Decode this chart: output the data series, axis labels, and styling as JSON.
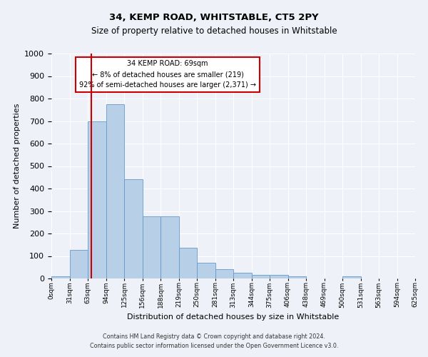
{
  "title": "34, KEMP ROAD, WHITSTABLE, CT5 2PY",
  "subtitle": "Size of property relative to detached houses in Whitstable",
  "xlabel": "Distribution of detached houses by size in Whitstable",
  "ylabel": "Number of detached properties",
  "footer_line1": "Contains HM Land Registry data © Crown copyright and database right 2024.",
  "footer_line2": "Contains public sector information licensed under the Open Government Licence v3.0.",
  "bins": [
    "0sqm",
    "31sqm",
    "63sqm",
    "94sqm",
    "125sqm",
    "156sqm",
    "188sqm",
    "219sqm",
    "250sqm",
    "281sqm",
    "313sqm",
    "344sqm",
    "375sqm",
    "406sqm",
    "438sqm",
    "469sqm",
    "500sqm",
    "531sqm",
    "563sqm",
    "594sqm",
    "625sqm"
  ],
  "bar_values": [
    8,
    128,
    700,
    775,
    440,
    275,
    275,
    135,
    70,
    40,
    25,
    15,
    15,
    8,
    0,
    0,
    10,
    0,
    0,
    0
  ],
  "bar_color": "#b8cfe8",
  "bar_edge_color": "#6699cc",
  "vline_color": "#cc0000",
  "annotation_text": "34 KEMP ROAD: 69sqm\n← 8% of detached houses are smaller (219)\n92% of semi-detached houses are larger (2,371) →",
  "annotation_box_color": "#ffffff",
  "annotation_box_edge": "#cc0000",
  "ylim": [
    0,
    1000
  ],
  "yticks": [
    0,
    100,
    200,
    300,
    400,
    500,
    600,
    700,
    800,
    900,
    1000
  ],
  "background_color": "#eef2f8",
  "plot_background": "#eef2f8",
  "grid_color": "#ffffff",
  "title_fontsize": 9.5,
  "subtitle_fontsize": 8.5,
  "xlabel_fontsize": 8,
  "ylabel_fontsize": 8,
  "tick_fontsize": 6.5,
  "annotation_fontsize": 7,
  "footer_fontsize": 5.8
}
